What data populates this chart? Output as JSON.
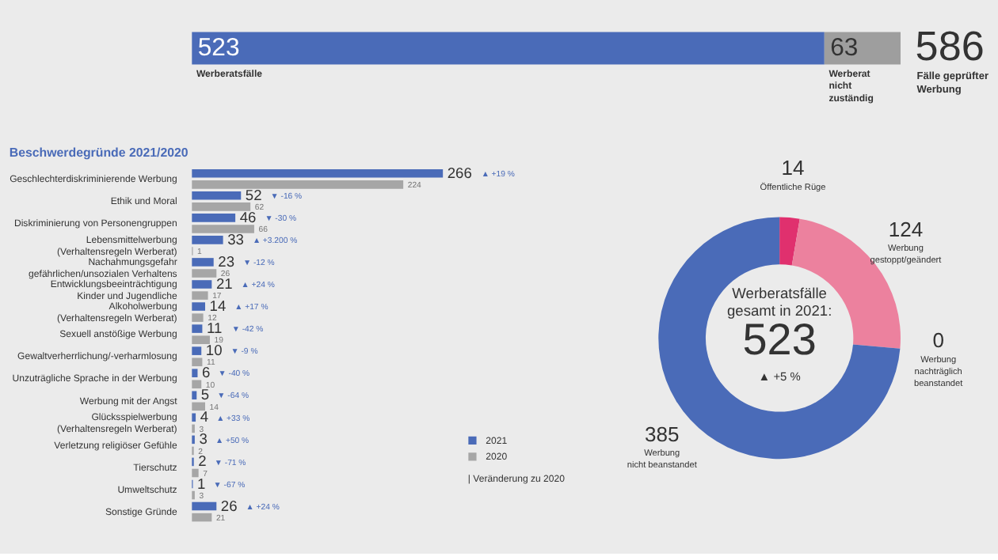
{
  "chart_data": [
    {
      "type": "bar",
      "orientation": "horizontal",
      "stacked": true,
      "categories": [
        null
      ],
      "series": [
        {
          "name": "Werberatsfälle",
          "color": "#4a6bb8",
          "values": [
            523
          ]
        },
        {
          "name": "Werberat\nnicht\nzuständig",
          "color": "#9e9e9e",
          "values": [
            63
          ]
        }
      ],
      "data_labels": true,
      "totals": [
        "586"
      ],
      "annotations": [
        "Fälle geprüfter\nWerbung"
      ]
    },
    {
      "type": "bar",
      "orientation": "horizontal",
      "title": "Beschwerdegründe 2021/2020",
      "categories": [
        "Geschlechterdiskriminierende Werbung",
        "Ethik und Moral",
        "Diskriminierung von Personengruppen",
        "Lebensmittelwerbung\n(Verhaltensregeln Werberat)",
        "Nachahmungsgefahr\ngefährlichen/unsozialen Verhaltens",
        "Entwicklungsbeeinträchtigung\nKinder und Jugendliche",
        "Alkoholwerbung\n(Verhaltensregeln Werberat)",
        "Sexuell anstößige Werbung",
        "Gewaltverherrlichung/-verharmlosung",
        "Unzuträgliche Sprache in der Werbung",
        "Werbung mit der Angst",
        "Glücksspielwerbung\n(Verhaltensregeln Werberat)",
        "Verletzung religiöser Gefühle",
        "Tierschutz",
        "Umweltschutz",
        "Sonstige Gründe"
      ],
      "series": [
        {
          "name": "2021",
          "color": "#4a6bb8",
          "values": [
            266,
            52,
            46,
            33,
            23,
            21,
            14,
            11,
            10,
            6,
            5,
            4,
            3,
            2,
            1,
            26
          ]
        },
        {
          "name": "2020",
          "color": "#a6a6a6",
          "values": [
            224,
            62,
            66,
            1,
            26,
            17,
            12,
            19,
            11,
            10,
            14,
            3,
            2,
            7,
            3,
            21
          ]
        }
      ],
      "data_labels": true,
      "legend": "bottom right",
      "annotations": [
        "▲ +19 %",
        "▼ -16 %",
        "▼ -30 %",
        "▲ +3.200 %",
        "▼ -12 %",
        "▲ +24 %",
        "▲ +17 %",
        "▼ -42 %",
        "▼ -9 %",
        "▼ -40 %",
        "▼ -64 %",
        "▲ +33 %",
        "▲ +50 %",
        "▼ -71 %",
        "▼ -67 %",
        "▲ +24 %",
        "| Veränderung zu 2020"
      ]
    },
    {
      "type": "donut",
      "categories": [
        "Öffentliche Rüge",
        "Werbung\ngestoppt/geändert",
        "Werbung\nnachträglich\nbeanstandet",
        "Werbung\nnicht beanstandet"
      ],
      "values": [
        14,
        124,
        0,
        385
      ],
      "colors": [
        "#e0306e",
        "#ec819e",
        "#ec819e",
        "#4a6bb8"
      ],
      "value_labels": [
        "14",
        "124",
        "0",
        "385"
      ],
      "annotations": [
        "Werberatsfälle\ngesamt in 2021:",
        "523",
        "▲ +5 %"
      ]
    }
  ]
}
